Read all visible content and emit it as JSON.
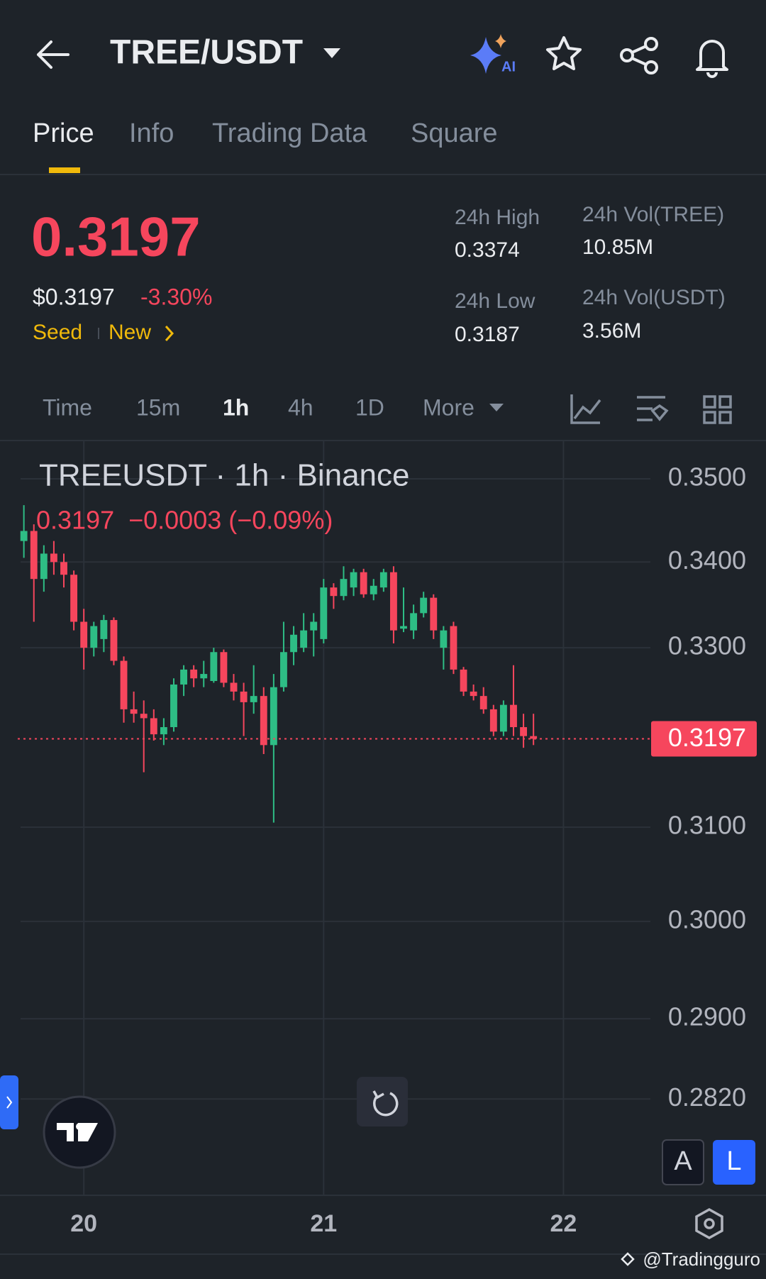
{
  "header": {
    "pair": "TREE/USDT",
    "ai": "AI"
  },
  "tabs": [
    "Price",
    "Info",
    "Trading Data",
    "Square"
  ],
  "ticker": {
    "price": "0.3197",
    "usd_price": "$0.3197",
    "change": "-3.30%",
    "tag_seed": "Seed",
    "tag_new": "New",
    "stats": [
      {
        "label": "24h High",
        "value": "0.3374"
      },
      {
        "label": "24h Vol(TREE)",
        "value": "10.85M"
      },
      {
        "label": "24h Low",
        "value": "0.3187"
      },
      {
        "label": "24h Vol(USDT)",
        "value": "3.56M"
      }
    ]
  },
  "intervals": [
    "Time",
    "15m",
    "1h",
    "4h",
    "1D",
    "More"
  ],
  "chart_data": {
    "type": "candlestick",
    "title": "TREEUSDT · 1h · Binance",
    "subtitle": "0.3197  −0.0003 (−0.09%)",
    "x": [
      0,
      1,
      2,
      3,
      4,
      5,
      6,
      7,
      8,
      9,
      10,
      11,
      12,
      13,
      14,
      15,
      16,
      17,
      18,
      19,
      20,
      21,
      22,
      23,
      24,
      25,
      26,
      27,
      28,
      29,
      30,
      31,
      32,
      33,
      34,
      35,
      36,
      37,
      38,
      39,
      40,
      41,
      42,
      43,
      44,
      45,
      46,
      47,
      48,
      49,
      50,
      51
    ],
    "open": [
      0.3425,
      0.3437,
      0.338,
      0.341,
      0.34,
      0.3385,
      0.333,
      0.33,
      0.331,
      0.3332,
      0.3285,
      0.323,
      0.3225,
      0.322,
      0.3202,
      0.321,
      0.3258,
      0.3275,
      0.3265,
      0.3262,
      0.3295,
      0.326,
      0.325,
      0.3238,
      0.3245,
      0.319,
      0.3255,
      0.3295,
      0.33,
      0.332,
      0.331,
      0.337,
      0.336,
      0.337,
      0.3388,
      0.3362,
      0.337,
      0.3388,
      0.3322,
      0.332,
      0.334,
      0.3358,
      0.33,
      0.3325,
      0.3275,
      0.325,
      0.3245,
      0.323,
      0.3205,
      0.3235,
      0.321,
      0.32
    ],
    "high": [
      0.3468,
      0.3445,
      0.342,
      0.3425,
      0.341,
      0.339,
      0.3345,
      0.333,
      0.3338,
      0.3335,
      0.329,
      0.325,
      0.324,
      0.323,
      0.322,
      0.3265,
      0.328,
      0.328,
      0.3285,
      0.33,
      0.3298,
      0.327,
      0.326,
      0.328,
      0.3255,
      0.327,
      0.333,
      0.3325,
      0.334,
      0.334,
      0.338,
      0.3375,
      0.3395,
      0.3392,
      0.3392,
      0.338,
      0.3392,
      0.3395,
      0.337,
      0.335,
      0.3365,
      0.3362,
      0.3325,
      0.333,
      0.3278,
      0.3258,
      0.3255,
      0.3235,
      0.324,
      0.328,
      0.3225,
      0.3225
    ],
    "low": [
      0.3405,
      0.333,
      0.3365,
      0.3385,
      0.337,
      0.332,
      0.3275,
      0.329,
      0.3295,
      0.328,
      0.3215,
      0.3215,
      0.316,
      0.3195,
      0.319,
      0.3205,
      0.3245,
      0.3255,
      0.3255,
      0.326,
      0.3255,
      0.324,
      0.32,
      0.3225,
      0.318,
      0.3105,
      0.325,
      0.328,
      0.3295,
      0.329,
      0.3305,
      0.3345,
      0.3355,
      0.336,
      0.3358,
      0.3355,
      0.3365,
      0.3305,
      0.3318,
      0.331,
      0.3335,
      0.331,
      0.3275,
      0.327,
      0.3245,
      0.324,
      0.3225,
      0.32,
      0.32,
      0.32,
      0.3187,
      0.319
    ],
    "close": [
      0.3437,
      0.338,
      0.341,
      0.34,
      0.3385,
      0.333,
      0.33,
      0.3325,
      0.3332,
      0.3285,
      0.323,
      0.3225,
      0.322,
      0.3202,
      0.321,
      0.3258,
      0.3275,
      0.3265,
      0.327,
      0.3295,
      0.326,
      0.325,
      0.3238,
      0.3245,
      0.319,
      0.3255,
      0.3295,
      0.3315,
      0.332,
      0.333,
      0.337,
      0.336,
      0.338,
      0.3388,
      0.3362,
      0.3372,
      0.3388,
      0.332,
      0.3325,
      0.334,
      0.3358,
      0.332,
      0.332,
      0.3275,
      0.325,
      0.3245,
      0.323,
      0.3205,
      0.3235,
      0.321,
      0.32,
      0.3197
    ],
    "up_color": "#2ebd85",
    "down_color": "#f6465d",
    "xlim": [
      -0.33,
      62.7
    ],
    "xticks": [
      {
        "value": 6,
        "label": "20"
      },
      {
        "value": 30,
        "label": "21"
      },
      {
        "value": 54,
        "label": "22"
      }
    ],
    "ylim": [
      0.2727,
      0.3547
    ],
    "log_y": true,
    "yticks": [
      {
        "value": 0.35,
        "label": "0.3500"
      },
      {
        "value": 0.34,
        "label": "0.3400"
      },
      {
        "value": 0.33,
        "label": "0.3300"
      },
      {
        "value": 0.31,
        "label": "0.3100"
      },
      {
        "value": 0.3,
        "label": "0.3000"
      },
      {
        "value": 0.29,
        "label": "0.2900"
      },
      {
        "value": 0.282,
        "label": "0.2820"
      }
    ],
    "grid": true,
    "last_price": 0.3197
  },
  "buttons": {
    "a": "A",
    "l": "L"
  },
  "watermark": "@Tradingguro"
}
